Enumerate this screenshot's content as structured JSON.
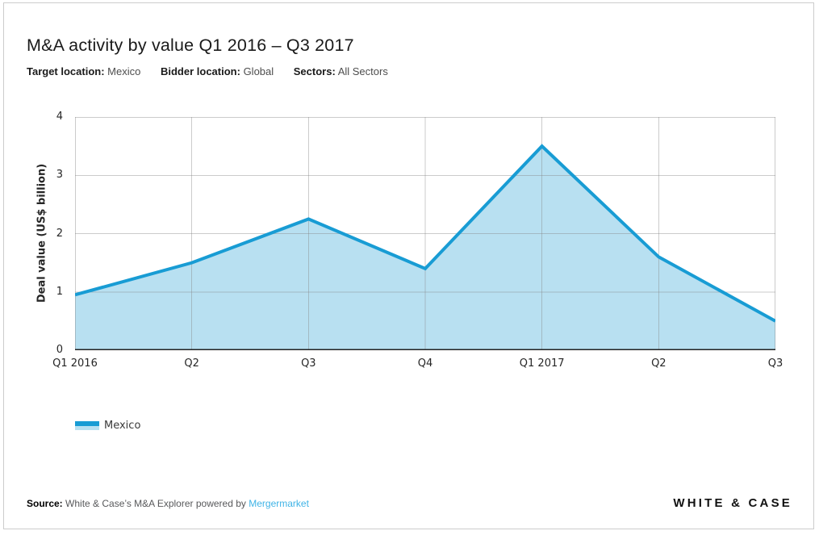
{
  "page": {
    "filters": [
      {
        "label": "Target location:",
        "value": "Mexico"
      },
      {
        "label": "Bidder location:",
        "value": "Global"
      },
      {
        "label": "Sectors:",
        "value": "All Sectors"
      }
    ]
  },
  "chart_data": {
    "type": "area",
    "title": "M&A activity by value Q1 2016 – Q3 2017",
    "categories": [
      "Q1 2016",
      "Q2",
      "Q3",
      "Q4",
      "Q1 2017",
      "Q2",
      "Q3"
    ],
    "series": [
      {
        "name": "Mexico",
        "values": [
          0.95,
          1.5,
          2.25,
          1.4,
          3.5,
          1.6,
          0.5
        ]
      }
    ],
    "xlabel": "",
    "ylabel": "Deal value (US$ billion)",
    "ylim": [
      0,
      4
    ],
    "yticks": [
      0,
      1,
      2,
      3,
      4
    ],
    "grid": true,
    "legend_position": "bottom-left",
    "line_color": "#189cd4",
    "fill_color": "#b8e0f1",
    "grid_color": "rgba(130,130,130,0.42)",
    "axis_color": "#222222"
  },
  "footer": {
    "source_label": "Source:",
    "source_text": " White & Case’s M&A Explorer powered by ",
    "source_link": "Mergermarket",
    "logo_text": "WHITE & CASE"
  }
}
